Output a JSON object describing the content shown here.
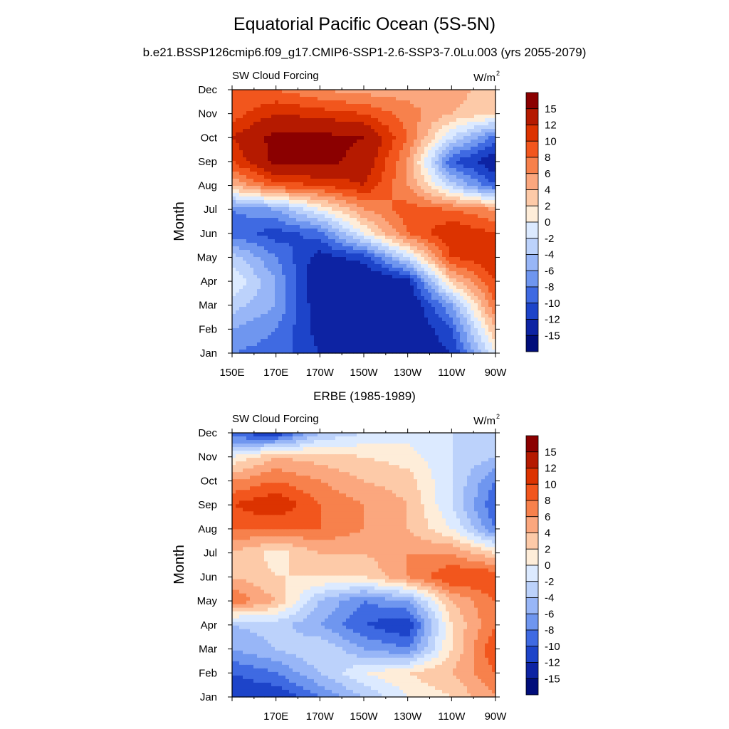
{
  "title": "Equatorial Pacific Ocean (5S-5N)",
  "subtitle": "b.e21.BSSP126cmip6.f09_g17.CMIP6-SSP1-2.6-SSP3-7.0Lu.003 (yrs 2055-2079)",
  "colorbar": {
    "labels": [
      "15",
      "12",
      "10",
      "8",
      "6",
      "4",
      "2",
      "0",
      "-2",
      "-4",
      "-6",
      "-8",
      "-10",
      "-12",
      "-15"
    ],
    "colors": [
      "#8b0000",
      "#b51a00",
      "#dc3300",
      "#f2561d",
      "#f7814c",
      "#fba77e",
      "#fdcaa8",
      "#feedd9",
      "#dceaff",
      "#bcd2fb",
      "#98b6f7",
      "#6f96ef",
      "#3f6ae2",
      "#1d44c9",
      "#0d23a3",
      "#000d7a"
    ]
  },
  "chart_data": [
    {
      "type": "heatmap",
      "panel_title": "",
      "left_label": "SW Cloud Forcing",
      "units_label": "W/m",
      "units_sup": "2",
      "ylabel": "Month",
      "x": [
        150,
        170,
        190,
        210,
        230,
        250,
        270
      ],
      "x_tick_labels": [
        "150E",
        "170E",
        "170W",
        "150W",
        "130W",
        "110W",
        "90W"
      ],
      "xlim": [
        150,
        270
      ],
      "y_tick_labels": [
        "Jan",
        "Feb",
        "Mar",
        "Apr",
        "May",
        "Jun",
        "Jul",
        "Aug",
        "Sep",
        "Oct",
        "Nov",
        "Dec"
      ],
      "ylim": [
        1,
        12
      ],
      "colorbar_labels": [
        "15",
        "12",
        "10",
        "8",
        "6",
        "4",
        "2",
        "0",
        "-2",
        "-4",
        "-6",
        "-8",
        "-10",
        "-12",
        "-15"
      ],
      "values": [
        [
          -8,
          -9,
          -12,
          -14,
          -15,
          -12,
          0
        ],
        [
          -6,
          -8,
          -13,
          -15,
          -15,
          -10,
          4
        ],
        [
          -3,
          -6,
          -14,
          -15,
          -15,
          -6,
          8
        ],
        [
          0,
          -6,
          -15,
          -15,
          -13,
          3,
          10
        ],
        [
          -3,
          -8,
          -13,
          -11,
          -2,
          10,
          12
        ],
        [
          -9,
          -11,
          -9,
          0,
          8,
          12,
          10
        ],
        [
          -8,
          -6,
          0,
          6,
          9,
          8,
          6
        ],
        [
          4,
          9,
          10,
          12,
          6,
          -3,
          -10
        ],
        [
          10,
          16,
          16,
          14,
          6,
          -10,
          -14
        ],
        [
          12,
          16,
          16,
          15,
          8,
          -2,
          -9
        ],
        [
          9,
          12,
          11,
          10,
          7,
          4,
          2
        ],
        [
          8,
          8,
          6,
          5,
          5,
          5,
          3
        ]
      ]
    },
    {
      "type": "heatmap",
      "panel_title": "ERBE (1985-1989)",
      "left_label": "SW Cloud Forcing",
      "units_label": "W/m",
      "units_sup": "2",
      "ylabel": "Month",
      "x": [
        150,
        170,
        190,
        210,
        230,
        250,
        270
      ],
      "x_tick_labels": [
        "",
        "170E",
        "170W",
        "150W",
        "130W",
        "110W",
        "90W"
      ],
      "xlim": [
        150,
        270
      ],
      "y_tick_labels": [
        "Jan",
        "Feb",
        "Mar",
        "Apr",
        "May",
        "Jun",
        "Jul",
        "Aug",
        "Sep",
        "Oct",
        "Nov",
        "Dec"
      ],
      "ylim": [
        1,
        12
      ],
      "colorbar_labels": [
        "15",
        "12",
        "10",
        "8",
        "6",
        "4",
        "2",
        "0",
        "-2",
        "-4",
        "-6",
        "-8",
        "-10",
        "-12",
        "-15"
      ],
      "values": [
        [
          -12,
          -12,
          -8,
          -4,
          0,
          2,
          6
        ],
        [
          -10,
          -8,
          -4,
          0,
          2,
          4,
          8
        ],
        [
          -6,
          -4,
          -2,
          -6,
          -8,
          2,
          10
        ],
        [
          -4,
          -3,
          -6,
          -10,
          -12,
          2,
          8
        ],
        [
          8,
          4,
          -4,
          -8,
          -6,
          4,
          8
        ],
        [
          4,
          2,
          2,
          2,
          6,
          10,
          10
        ],
        [
          4,
          1,
          4,
          4,
          6,
          6,
          2
        ],
        [
          8,
          8,
          8,
          6,
          4,
          0,
          -8
        ],
        [
          10,
          12,
          8,
          6,
          4,
          -2,
          -10
        ],
        [
          6,
          8,
          6,
          4,
          3,
          -2,
          -8
        ],
        [
          0,
          4,
          3,
          2,
          1,
          -2,
          -4
        ],
        [
          -10,
          -12,
          -4,
          -2,
          -1,
          -2,
          -2
        ]
      ]
    }
  ]
}
